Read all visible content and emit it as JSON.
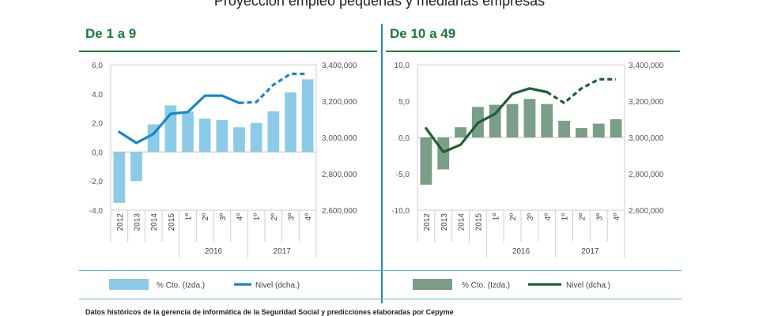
{
  "title": "Proyección empleo pequeñas y medianas empresas",
  "source_note": "Datos históricos de la gerencia de informática de la Seguridad Social y predicciones elaboradas por Cepyme",
  "colors": {
    "panel1_bar": "#8ccbe8",
    "panel1_line": "#1a86c9",
    "panel2_bar": "#7a9e88",
    "panel2_line": "#1f5e34",
    "title_green": "#1e7a3a",
    "divider": "#2a86c4"
  },
  "chart_data": [
    {
      "type": "bar",
      "title": "De 1 a 9",
      "categories": [
        "2012",
        "2013",
        "2014",
        "2015",
        "1º",
        "2º",
        "3º",
        "4º",
        "1º",
        "2º",
        "3º",
        "4º"
      ],
      "group_labels": [
        "2016",
        "2017"
      ],
      "series": [
        {
          "name": "% Cto. (Izda.)",
          "type": "bar",
          "axis": "left",
          "values": [
            -3.5,
            -2.0,
            1.9,
            3.2,
            2.8,
            2.3,
            2.2,
            1.7,
            2.0,
            2.8,
            4.1,
            5.0
          ]
        },
        {
          "name": "Nivel (dcha.)",
          "type": "line",
          "axis": "right",
          "values": [
            3030000,
            2970000,
            3020000,
            3130000,
            3140000,
            3230000,
            3230000,
            3190000,
            3195000,
            3290000,
            3350000,
            3350000
          ],
          "forecast_from_index": 8
        }
      ],
      "yleft": {
        "lim": [
          -4.0,
          6.0
        ],
        "ticks": [
          "6,0",
          "4,0",
          "2,0",
          "0,0",
          "-2,0",
          "-4,0"
        ]
      },
      "yright": {
        "lim": [
          2600000,
          3400000
        ],
        "ticks": [
          "3,400,000",
          "3,200,000",
          "3,000,000",
          "2,800,000",
          "2,600,000"
        ]
      },
      "legend": [
        "% Cto. (Izda.)",
        "Nivel (dcha.)"
      ]
    },
    {
      "type": "bar",
      "title": "De 10 a 49",
      "categories": [
        "2012",
        "2013",
        "2014",
        "2015",
        "1º",
        "2º",
        "3º",
        "4º",
        "1º",
        "2º",
        "3º",
        "4º"
      ],
      "group_labels": [
        "2016",
        "2017"
      ],
      "series": [
        {
          "name": "% Cto. (Izda.)",
          "type": "bar",
          "axis": "left",
          "values": [
            -6.5,
            -4.4,
            1.4,
            4.2,
            4.5,
            4.6,
            5.3,
            4.6,
            2.3,
            1.3,
            1.9,
            2.5
          ],
          "label": "% Cto. (Izda.)"
        },
        {
          "name": "Nivel (dcha.)",
          "type": "line",
          "axis": "right",
          "values": [
            3050000,
            2920000,
            2960000,
            3080000,
            3130000,
            3240000,
            3270000,
            3250000,
            3190000,
            3270000,
            3320000,
            3320000
          ],
          "forecast_from_index": 8
        }
      ],
      "yleft": {
        "lim": [
          -10.0,
          10.0
        ],
        "ticks": [
          "10,0",
          "5,0",
          "0,0",
          "-5,0",
          "-10,0"
        ]
      },
      "yright": {
        "lim": [
          2600000,
          3400000
        ],
        "ticks": [
          "3,400,000",
          "3,200,000",
          "3,000,000",
          "2,800,000",
          "2,600,000"
        ]
      },
      "legend": [
        "% Cto. (Izda.)",
        "Nivel (dcha.)"
      ]
    }
  ]
}
